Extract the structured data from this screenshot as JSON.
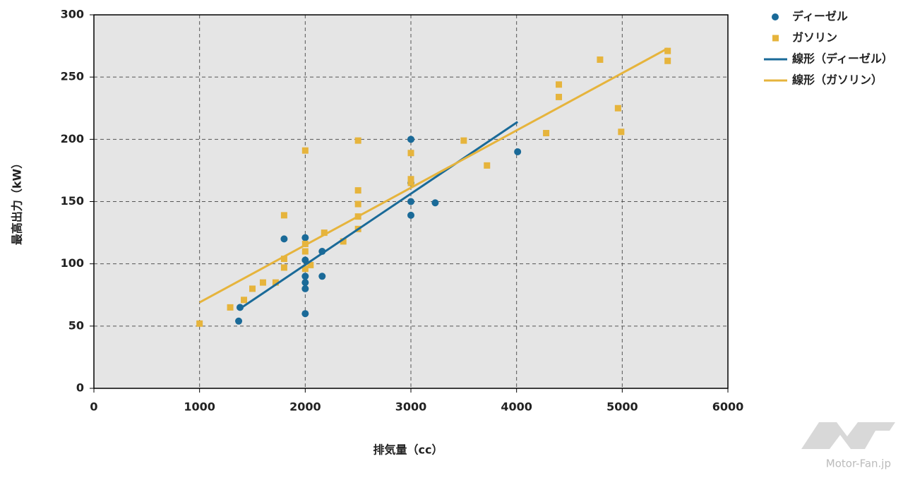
{
  "chart_data": {
    "type": "scatter",
    "x_label": "排気量（cc）",
    "y_label": "最高出力（kW）",
    "xlim": [
      0,
      6000
    ],
    "xticks": [
      0,
      1000,
      2000,
      3000,
      4000,
      5000,
      6000
    ],
    "ylim": [
      0,
      300
    ],
    "yticks": [
      0,
      50,
      100,
      150,
      200,
      250,
      300
    ],
    "grid": true,
    "legend": "right",
    "series": [
      {
        "name": "ディーゼル",
        "type": "scatter",
        "marker": "circle",
        "color": "#1a6a98",
        "x": [
          1383,
          1370,
          1800,
          2000,
          2000,
          2000,
          2000,
          2000,
          2000,
          2160,
          2160,
          3000,
          3000,
          3000,
          3000,
          3230,
          4010
        ],
        "values": [
          65,
          54,
          120,
          121,
          103,
          90,
          85,
          80,
          60,
          110,
          90,
          200,
          165,
          150,
          139,
          149,
          190
        ]
      },
      {
        "name": "ガソリン",
        "type": "scatter",
        "marker": "square",
        "color": "#e6b43c",
        "x": [
          1000,
          1290,
          1420,
          1500,
          1600,
          1720,
          1800,
          1800,
          1800,
          2000,
          2000,
          2000,
          2000,
          2050,
          2180,
          2360,
          2500,
          2500,
          2500,
          2500,
          2500,
          3000,
          3000,
          3000,
          3500,
          3720,
          4280,
          4400,
          4400,
          4790,
          4960,
          4990,
          5430,
          5430
        ],
        "values": [
          52,
          65,
          71,
          80,
          85,
          85,
          139,
          104,
          97,
          191,
          116,
          110,
          96,
          99,
          125,
          118,
          199,
          159,
          148,
          138,
          128,
          189,
          168,
          165,
          199,
          179,
          205,
          244,
          234,
          264,
          225,
          206,
          271,
          263
        ]
      },
      {
        "name": "線形（ディーゼル）",
        "type": "line",
        "color": "#1a6a98",
        "x": [
          1383,
          4010
        ],
        "values": [
          64,
          214
        ]
      },
      {
        "name": "線形（ガソリン）",
        "type": "line",
        "color": "#e6b43c",
        "x": [
          1000,
          5430
        ],
        "values": [
          69,
          273
        ]
      }
    ]
  },
  "watermark": "Motor-Fan.jp"
}
